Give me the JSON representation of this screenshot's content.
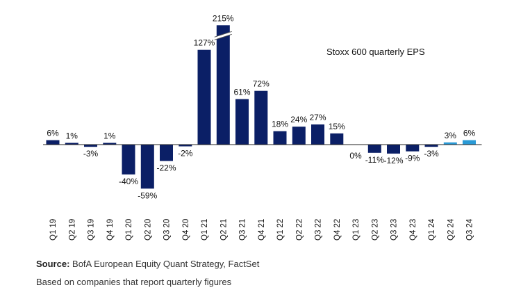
{
  "chart_data": {
    "type": "bar",
    "title": "Stoxx 600 quarterly EPS",
    "xlabel": "",
    "ylabel": "",
    "categories": [
      "Q1 19",
      "Q2 19",
      "Q3 19",
      "Q4 19",
      "Q1 20",
      "Q2 20",
      "Q3 20",
      "Q4 20",
      "Q1 21",
      "Q2 21",
      "Q3 21",
      "Q4 21",
      "Q1 22",
      "Q2 22",
      "Q3 22",
      "Q4 22",
      "Q1 23",
      "Q2 23",
      "Q3 23",
      "Q4 23",
      "Q1 24",
      "Q2 24",
      "Q3 24"
    ],
    "values": [
      6,
      1,
      -3,
      1,
      -40,
      -59,
      -22,
      -2,
      127,
      215,
      61,
      72,
      18,
      24,
      27,
      15,
      0,
      -11,
      -12,
      -9,
      -3,
      3,
      6
    ],
    "labels": [
      "6%",
      "1%",
      "-3%",
      "1%",
      "-40%",
      "-59%",
      "-22%",
      "-2%",
      "127%",
      "215%",
      "61%",
      "72%",
      "18%",
      "24%",
      "27%",
      "15%",
      "0%",
      "-11%",
      "-12%",
      "-9%",
      "-3%",
      "3%",
      "6%"
    ],
    "estimate_categories": [
      "Q2 24",
      "Q3 24"
    ],
    "axis_break_category": "Q2 21",
    "grid": false,
    "legend": "none",
    "colors": {
      "actual": "#0b1f66",
      "estimate": "#2a9ad6",
      "axis": "#222222"
    }
  },
  "footer": {
    "source_label": "Source:",
    "source_text": " BofA European Equity Quant Strategy, FactSet",
    "note": "Based on companies that report quarterly figures"
  }
}
